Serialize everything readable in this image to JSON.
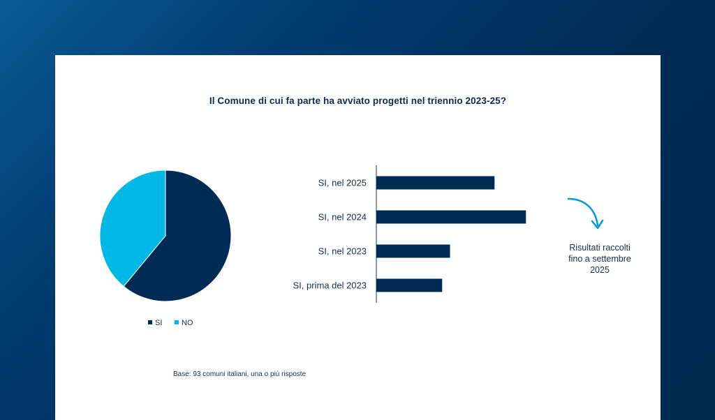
{
  "title": "Il Comune di cui fa parte ha avviato progetti nel triennio 2023-25?",
  "note": "Risultati raccolti fino a settembre 2025",
  "base": "Base: 93 comuni italiani, una o più risposte",
  "colors": {
    "dark": "#002b55",
    "light": "#00b8e6"
  },
  "chart_data": [
    {
      "type": "pie",
      "categories": [
        "SI",
        "NO"
      ],
      "values": [
        61,
        39
      ],
      "legend": "bottom"
    },
    {
      "type": "bar",
      "orientation": "horizontal",
      "categories": [
        "SI, nel 2025",
        "SI, nel 2024",
        "SI, nel 2023",
        "SI, prima del 2023"
      ],
      "values": [
        45,
        57,
        28,
        25
      ],
      "xlim": [
        0,
        60
      ]
    }
  ]
}
